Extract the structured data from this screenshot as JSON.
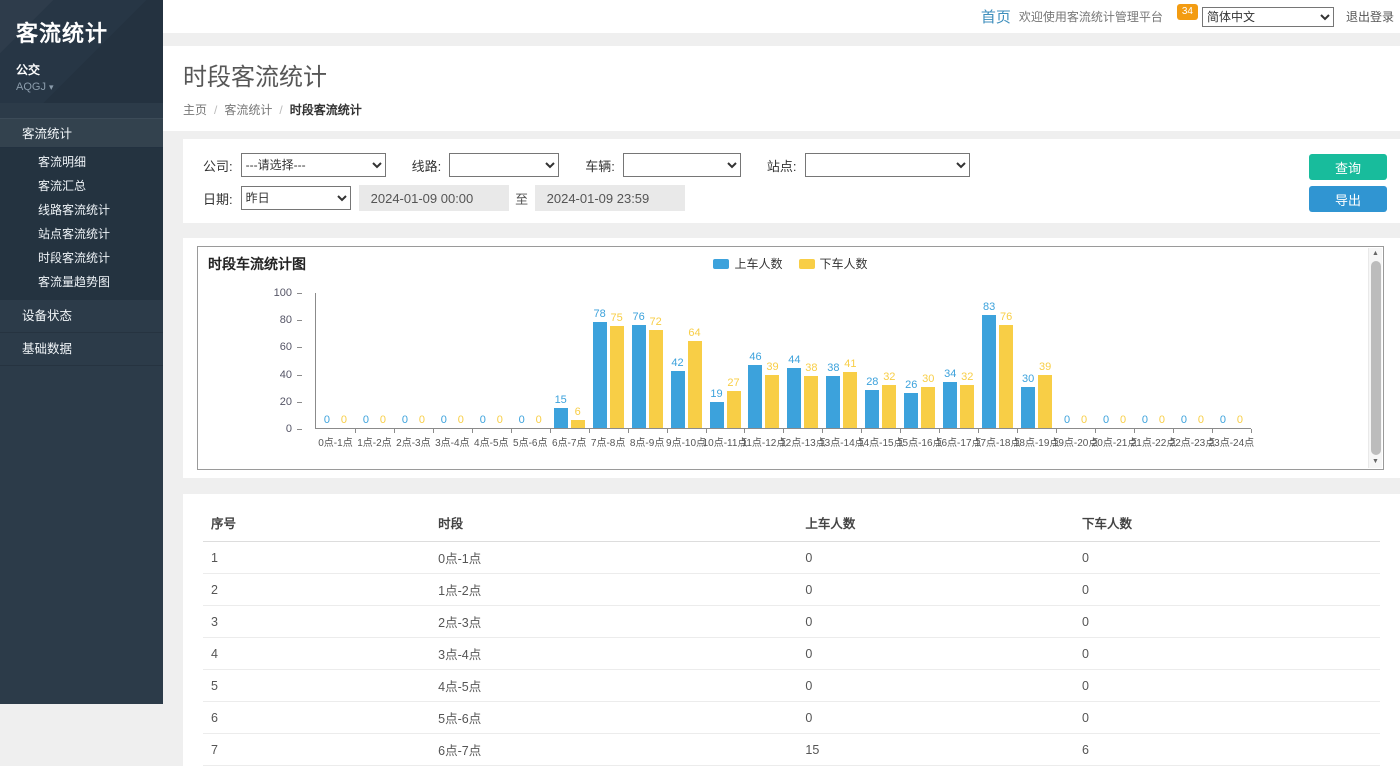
{
  "sidebar": {
    "logo": "客流统计",
    "org": "公交",
    "org_code": "AQGJ",
    "menu": {
      "parent": "客流统计",
      "sub_items": [
        "客流明细",
        "客流汇总",
        "线路客流统计",
        "站点客流统计",
        "时段客流统计",
        "客流量趋势图"
      ],
      "active_sub": "时段客流统计",
      "other_items": [
        "设备状态",
        "基础数据"
      ]
    }
  },
  "topbar": {
    "home": "首页",
    "welcome": "欢迎使用客流统计管理平台",
    "badge": "34",
    "language": "简体中文",
    "logout": "退出登录"
  },
  "page": {
    "title": "时段客流统计",
    "breadcrumb": [
      "主页",
      "客流统计",
      "时段客流统计"
    ],
    "breadcrumb_separator": "/"
  },
  "filters": {
    "company_label": "公司:",
    "company_value": "---请选择---",
    "line_label": "线路:",
    "line_value": "",
    "vehicle_label": "车辆:",
    "vehicle_value": "",
    "station_label": "站点:",
    "station_value": "",
    "date_label": "日期:",
    "date_preset": "昨日",
    "date_from": "2024-01-09 00:00",
    "date_separator": "至",
    "date_to": "2024-01-09 23:59",
    "query_button": "查询",
    "export_button": "导出"
  },
  "icons": {
    "caret_down": "▾",
    "scroll_up": "▲",
    "scroll_down": "▼"
  },
  "chart_data": {
    "type": "bar",
    "title": "时段车流统计图",
    "categories": [
      "0点-1点",
      "1点-2点",
      "2点-3点",
      "3点-4点",
      "4点-5点",
      "5点-6点",
      "6点-7点",
      "7点-8点",
      "8点-9点",
      "9点-10点",
      "10点-11点",
      "11点-12点",
      "12点-13点",
      "13点-14点",
      "14点-15点",
      "15点-16点",
      "16点-17点",
      "17点-18点",
      "18点-19点",
      "19点-20点",
      "20点-21点",
      "21点-22点",
      "22点-23点",
      "23点-24点"
    ],
    "series": [
      {
        "name": "上车人数",
        "color": "#3ca2dc",
        "values": [
          0,
          0,
          0,
          0,
          0,
          0,
          15,
          78,
          76,
          42,
          19,
          46,
          44,
          38,
          28,
          26,
          34,
          83,
          30,
          0,
          0,
          0,
          0,
          0
        ]
      },
      {
        "name": "下车人数",
        "color": "#f8ce46",
        "values": [
          0,
          0,
          0,
          0,
          0,
          0,
          6,
          75,
          72,
          64,
          27,
          39,
          38,
          41,
          32,
          30,
          32,
          76,
          39,
          0,
          0,
          0,
          0,
          0
        ]
      }
    ],
    "ylim": [
      0,
      100
    ],
    "y_ticks": [
      0,
      20,
      40,
      60,
      80,
      100
    ],
    "grid": false,
    "legend_position": "top-center",
    "xlabel": "",
    "ylabel": ""
  },
  "table": {
    "headers": [
      "序号",
      "时段",
      "上车人数",
      "下车人数"
    ],
    "rows": [
      [
        "1",
        "0点-1点",
        "0",
        "0"
      ],
      [
        "2",
        "1点-2点",
        "0",
        "0"
      ],
      [
        "3",
        "2点-3点",
        "0",
        "0"
      ],
      [
        "4",
        "3点-4点",
        "0",
        "0"
      ],
      [
        "5",
        "4点-5点",
        "0",
        "0"
      ],
      [
        "6",
        "5点-6点",
        "0",
        "0"
      ],
      [
        "7",
        "6点-7点",
        "15",
        "6"
      ]
    ]
  }
}
